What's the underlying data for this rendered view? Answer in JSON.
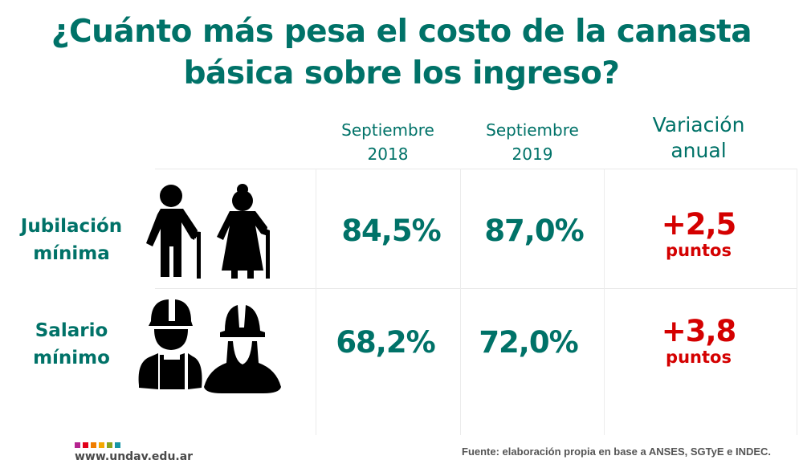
{
  "title": {
    "line1": "¿Cuánto más pesa el costo de la canasta",
    "line2": "básica sobre los ingreso?"
  },
  "columns": [
    {
      "line1": "Septiembre",
      "line2": "2018"
    },
    {
      "line1": "Septiembre",
      "line2": "2019"
    },
    {
      "line1": "Variación",
      "line2": "anual"
    }
  ],
  "rows": [
    {
      "label_line1": "Jubilación",
      "label_line2": "mínima",
      "icon": "elderly-couple-icon",
      "value_2018": "84,5%",
      "value_2019": "87,0%",
      "variation": "+2,5",
      "variation_unit": "puntos"
    },
    {
      "label_line1": "Salario",
      "label_line2": "mínimo",
      "icon": "construction-workers-icon",
      "value_2018": "68,2%",
      "value_2019": "72,0%",
      "variation": "+3,8",
      "variation_unit": "puntos"
    }
  ],
  "footer": {
    "logo_url": "www.undav.edu.ar",
    "logo_colors": [
      "#b5248f",
      "#e2001a",
      "#f07d00",
      "#f4a800",
      "#8aa31e",
      "#1596a6"
    ],
    "source": "Fuente: elaboración propia en base a ANSES, SGTyE e INDEC."
  },
  "colors": {
    "primary": "#007268",
    "accent": "#d40000",
    "icon": "#000000"
  }
}
